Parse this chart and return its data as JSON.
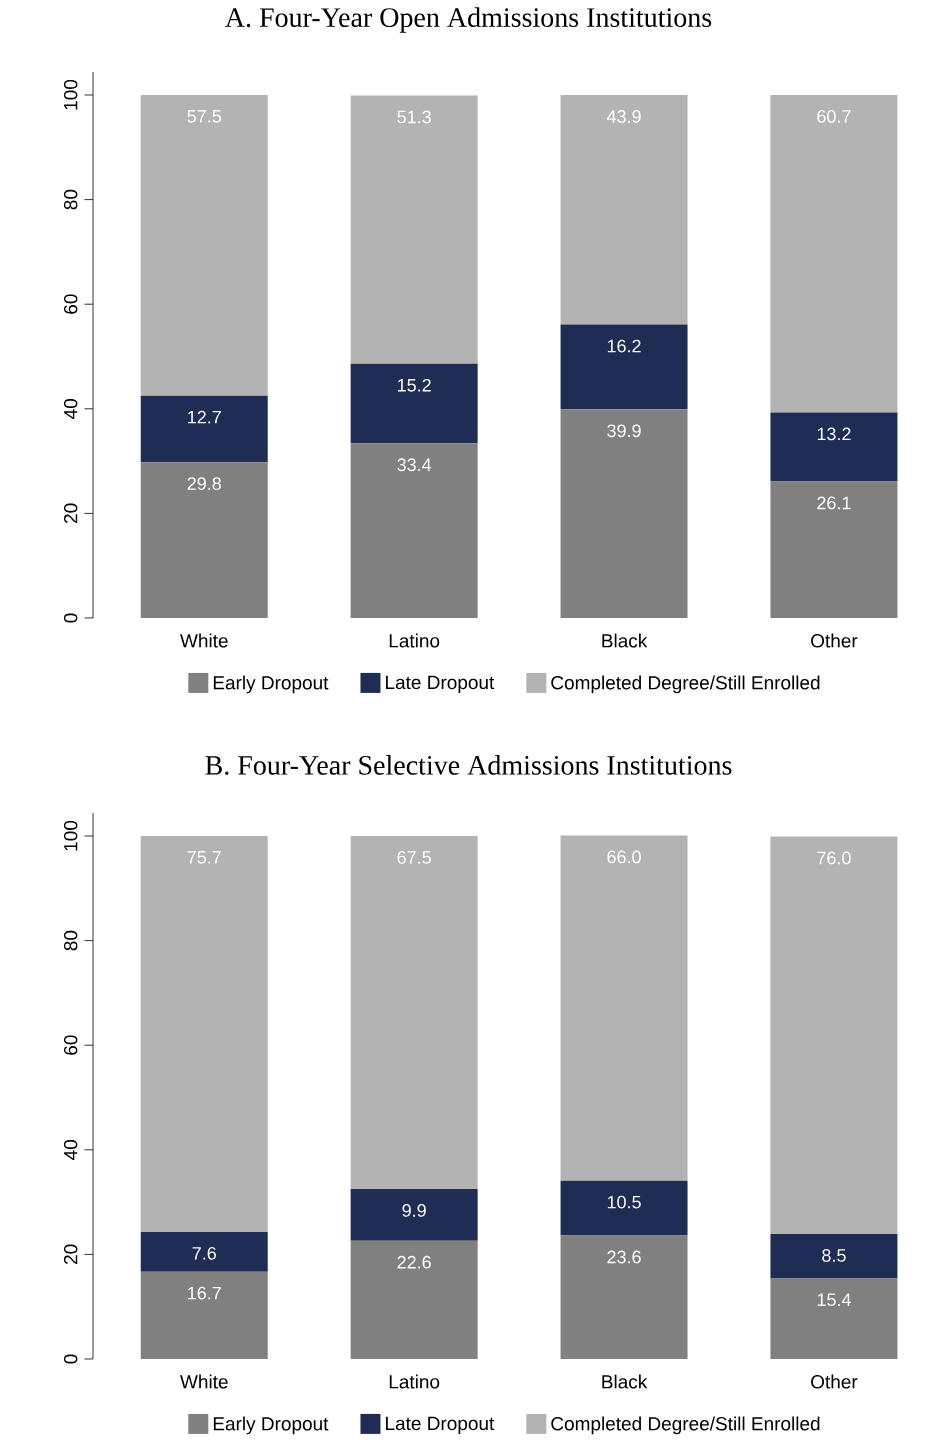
{
  "chart_data": [
    {
      "type": "bar",
      "title": "A. Four-Year Open Admissions Institutions",
      "stacked": true,
      "legend": "bottom",
      "grid": false,
      "categories": [
        "White",
        "Latino",
        "Black",
        "Other"
      ],
      "series": [
        {
          "name": "Early Dropout",
          "color": "#808080",
          "values": [
            29.8,
            33.4,
            39.9,
            26.1
          ],
          "value_labels": [
            "29.8",
            "33.4",
            "39.9",
            "26.1"
          ]
        },
        {
          "name": "Late Dropout",
          "color": "#1f2d54",
          "values": [
            12.7,
            15.2,
            16.2,
            13.2
          ],
          "value_labels": [
            "12.7",
            "15.2",
            "16.2",
            "13.2"
          ]
        },
        {
          "name": "Completed Degree/Still Enrolled",
          "color": "#b3b3b3",
          "values": [
            57.5,
            51.3,
            43.9,
            60.7
          ],
          "value_labels": [
            "57.5",
            "51.3",
            "43.9",
            "60.7"
          ]
        }
      ],
      "ylim": [
        0,
        104.4
      ],
      "yticks": [
        0,
        20,
        40,
        60,
        80,
        100
      ]
    },
    {
      "type": "bar",
      "title": "B. Four-Year Selective Admissions Institutions",
      "stacked": true,
      "legend": "bottom",
      "grid": false,
      "categories": [
        "White",
        "Latino",
        "Black",
        "Other"
      ],
      "series": [
        {
          "name": "Early Dropout",
          "color": "#808080",
          "values": [
            16.7,
            22.6,
            23.6,
            15.4
          ],
          "value_labels": [
            "16.7",
            "22.6",
            "23.6",
            "15.4"
          ]
        },
        {
          "name": "Late Dropout",
          "color": "#1f2d54",
          "values": [
            7.6,
            9.9,
            10.5,
            8.5
          ],
          "value_labels": [
            "7.6",
            "9.9",
            "10.5",
            "8.5"
          ]
        },
        {
          "name": "Completed Degree/Still Enrolled",
          "color": "#b3b3b3",
          "values": [
            75.7,
            67.5,
            66.0,
            76.0
          ],
          "value_labels": [
            "75.7",
            "67.5",
            "66.0",
            "76.0"
          ]
        }
      ],
      "ylim": [
        0,
        104.4
      ],
      "yticks": [
        0,
        20,
        40,
        60,
        80,
        100
      ]
    }
  ]
}
